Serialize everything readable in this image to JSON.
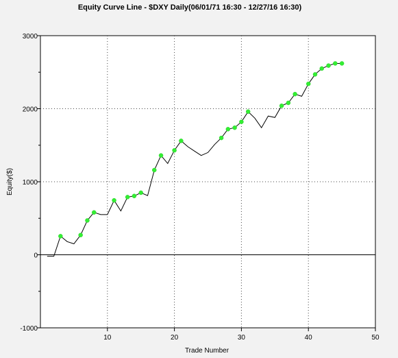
{
  "chart_data": {
    "type": "line",
    "title": "Equity Curve Line - $DXY Daily(06/01/71 16:30 - 12/27/16 16:30)",
    "xlabel": "Trade Number",
    "ylabel": "Equity($)",
    "xlim": [
      0,
      50
    ],
    "ylim": [
      -1000,
      3000
    ],
    "xticks": [
      10,
      20,
      30,
      40,
      50
    ],
    "yticks": [
      -1000,
      0,
      1000,
      2000,
      3000
    ],
    "grid": true,
    "zero_line": true,
    "colors": {
      "line": "#000000",
      "marker": "#33ee33",
      "grid": "#444444",
      "plot_bg": "#ffffff"
    },
    "series": [
      {
        "x": [
          1,
          2,
          3,
          4,
          5,
          6,
          7,
          8,
          9,
          10,
          11,
          12,
          13,
          14,
          15,
          16,
          17,
          18,
          19,
          20,
          21,
          22,
          23,
          24,
          25,
          26,
          27,
          28,
          29,
          30,
          31,
          32,
          33,
          34,
          35,
          36,
          37,
          38,
          39,
          40,
          41,
          42,
          43,
          44,
          45
        ],
        "y": [
          -20,
          -20,
          255,
          180,
          150,
          270,
          470,
          580,
          550,
          550,
          745,
          600,
          790,
          805,
          850,
          810,
          1160,
          1360,
          1250,
          1430,
          1560,
          1480,
          1420,
          1360,
          1400,
          1510,
          1600,
          1720,
          1740,
          1820,
          1960,
          1870,
          1740,
          1900,
          1880,
          2040,
          2080,
          2200,
          2170,
          2340,
          2470,
          2550,
          2590,
          2620,
          2620
        ],
        "marked": [
          false,
          false,
          true,
          false,
          false,
          true,
          true,
          true,
          false,
          false,
          true,
          false,
          true,
          true,
          true,
          false,
          true,
          true,
          false,
          true,
          true,
          false,
          false,
          false,
          false,
          false,
          true,
          true,
          true,
          true,
          true,
          false,
          false,
          false,
          false,
          true,
          true,
          true,
          false,
          true,
          true,
          true,
          true,
          true,
          true
        ]
      }
    ]
  }
}
